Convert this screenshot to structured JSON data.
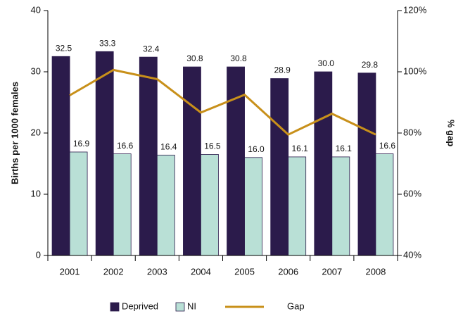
{
  "chart_data": {
    "type": "bar_line",
    "categories": [
      "2001",
      "2002",
      "2003",
      "2004",
      "2005",
      "2006",
      "2007",
      "2008"
    ],
    "series": [
      {
        "name": "Deprived",
        "color": "#2b1b4b",
        "values": [
          32.5,
          33.3,
          32.4,
          30.8,
          30.8,
          28.9,
          30.0,
          29.8
        ],
        "value_labels": [
          "32.5",
          "33.3",
          "32.4",
          "30.8",
          "30.8",
          "28.9",
          "30.0",
          "29.8"
        ]
      },
      {
        "name": "NI",
        "color": "#b9e0d6",
        "values": [
          16.9,
          16.6,
          16.4,
          16.5,
          16.0,
          16.1,
          16.1,
          16.6
        ],
        "value_labels": [
          "16.9",
          "16.6",
          "16.4",
          "16.5",
          "16.0",
          "16.1",
          "16.1",
          "16.6"
        ]
      },
      {
        "name": "Gap",
        "color": "#c8901a",
        "axis": "y2",
        "values": [
          92.3,
          100.6,
          97.6,
          86.7,
          92.5,
          79.5,
          86.3,
          79.5
        ]
      }
    ],
    "ylabel": "Births per 1000 females",
    "y2label": "% gap",
    "ylim": [
      0,
      40
    ],
    "yticks": [
      0,
      10,
      20,
      30,
      40
    ],
    "y2lim": [
      40,
      120
    ],
    "y2ticks": [
      {
        "value": 40,
        "label": "40%"
      },
      {
        "value": 60,
        "label": "60%"
      },
      {
        "value": 80,
        "label": "80%"
      },
      {
        "value": 100,
        "label": "100%"
      },
      {
        "value": 120,
        "label": "120%"
      }
    ],
    "legend": "bottom"
  }
}
